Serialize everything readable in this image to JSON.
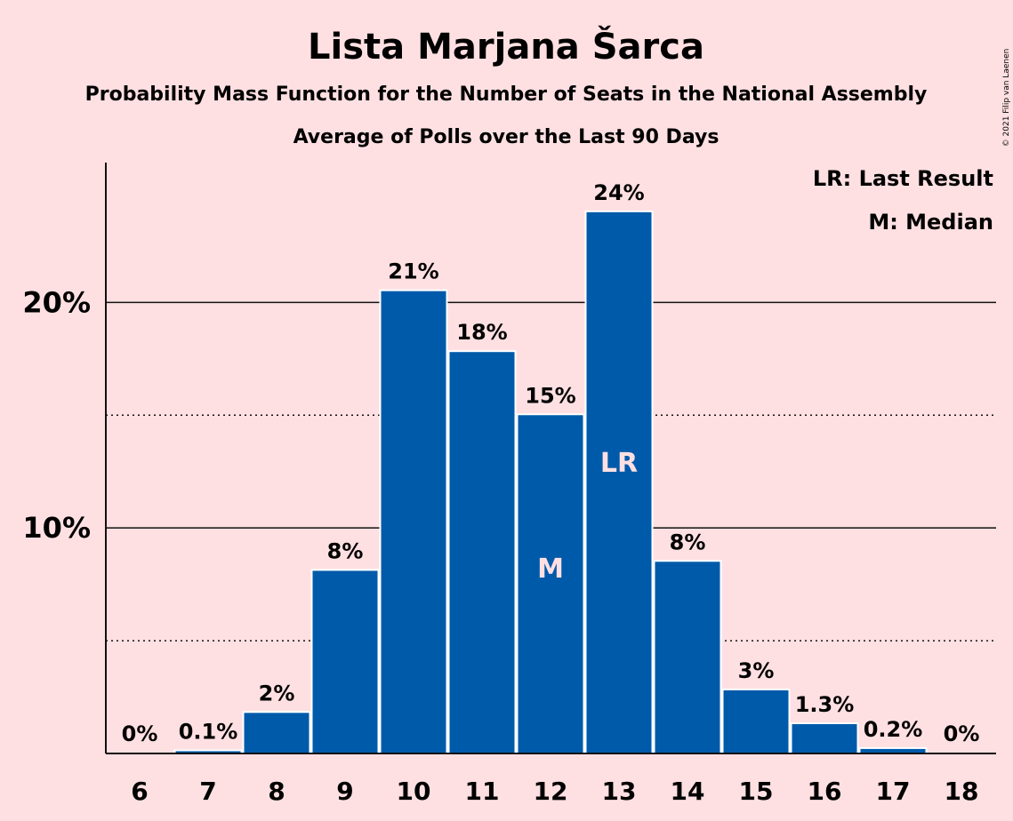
{
  "chart_data": {
    "type": "bar",
    "title": "Lista Marjana Šarca",
    "subtitles": [
      "Probability Mass Function for the Number of Seats in the National Assembly",
      "Average of Polls over the Last 90 Days"
    ],
    "categories": [
      "6",
      "7",
      "8",
      "9",
      "10",
      "11",
      "12",
      "13",
      "14",
      "15",
      "16",
      "17",
      "18"
    ],
    "values": [
      0,
      0.1,
      1.8,
      8.1,
      20.5,
      17.8,
      15.0,
      24.0,
      8.5,
      2.8,
      1.3,
      0.2,
      0
    ],
    "data_labels": [
      "0%",
      "0.1%",
      "2%",
      "8%",
      "21%",
      "18%",
      "15%",
      "24%",
      "8%",
      "3%",
      "1.3%",
      "0.2%",
      "0%"
    ],
    "ylim": [
      0,
      26.2
    ],
    "yticks": [
      {
        "value": 10,
        "label": "10%"
      },
      {
        "value": 20,
        "label": "20%"
      }
    ],
    "minor_gridlines": [
      5,
      15
    ],
    "bar_markers": [
      {
        "category": "12",
        "label": "M"
      },
      {
        "category": "13",
        "label": "LR"
      }
    ],
    "legend": {
      "position": "top-right",
      "items": [
        "LR: Last Result",
        "M: Median"
      ]
    },
    "copyright": "© 2021 Filip van Laenen",
    "colors": {
      "background": "#ffe0e2",
      "bar": "#005aaa",
      "text": "#111111"
    }
  }
}
